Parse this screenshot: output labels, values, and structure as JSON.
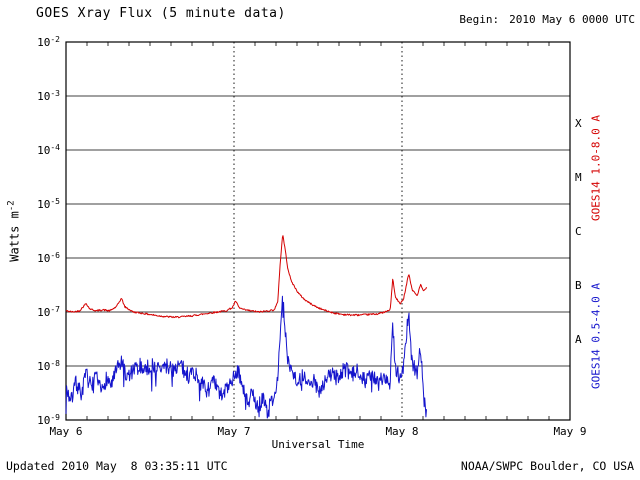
{
  "header": {
    "title": "GOES Xray Flux (5 minute data)",
    "begin_label": "Begin:",
    "begin_value": "2010 May 6 0000 UTC"
  },
  "footer": {
    "updated": "Updated 2010 May  8 03:35:11 UTC",
    "source": "NOAA/SWPC Boulder, CO USA"
  },
  "axes": {
    "xlabel": "Universal Time",
    "ylabel_base": "Watts m",
    "ylabel_exp": "-2"
  },
  "chart_data": {
    "type": "line",
    "title": "GOES Xray Flux (5 minute data)",
    "xlabel": "Universal Time",
    "ylabel": "Watts m^-2",
    "x_unit": "days since 2010 May 6 0000 UTC",
    "xlim_days": [
      0,
      3
    ],
    "ylim": [
      1e-09,
      0.01
    ],
    "y_scale": "log",
    "x_ticks": [
      {
        "label": "May 6",
        "t": 0
      },
      {
        "label": "May 7",
        "t": 1
      },
      {
        "label": "May 8",
        "t": 2
      },
      {
        "label": "May 9",
        "t": 3
      }
    ],
    "y_tick_base": "10",
    "y_tick_exponents": [
      -2,
      -3,
      -4,
      -5,
      -6,
      -7,
      -8,
      -9
    ],
    "y_gridline_exponents": [
      -3,
      -4,
      -5,
      -6,
      -7,
      -8
    ],
    "x_gridline_days": [
      1,
      2
    ],
    "grid": "horizontal solid lines at each decade; vertical dotted lines at day boundaries",
    "legend_position": "right-rotated",
    "flare_classes": [
      {
        "label": "X",
        "center_exponent": -3.5
      },
      {
        "label": "M",
        "center_exponent": -4.5
      },
      {
        "label": "C",
        "center_exponent": -5.5
      },
      {
        "label": "B",
        "center_exponent": -6.5
      },
      {
        "label": "A",
        "center_exponent": -7.5
      }
    ],
    "series": [
      {
        "name": "GOES14 1.0-8.0 A",
        "color": "#d40000",
        "noise_dex": 0.015,
        "points": [
          [
            0.0,
            1.05e-07
          ],
          [
            0.04,
            1e-07
          ],
          [
            0.08,
            1.05e-07
          ],
          [
            0.12,
            1.45e-07
          ],
          [
            0.14,
            1.15e-07
          ],
          [
            0.18,
            1.05e-07
          ],
          [
            0.22,
            1.1e-07
          ],
          [
            0.26,
            1.05e-07
          ],
          [
            0.3,
            1.25e-07
          ],
          [
            0.33,
            1.8e-07
          ],
          [
            0.35,
            1.25e-07
          ],
          [
            0.4,
            1e-07
          ],
          [
            0.45,
            9.5e-08
          ],
          [
            0.5,
            9e-08
          ],
          [
            0.55,
            8.5e-08
          ],
          [
            0.6,
            8.2e-08
          ],
          [
            0.65,
            8e-08
          ],
          [
            0.7,
            8.2e-08
          ],
          [
            0.75,
            8.5e-08
          ],
          [
            0.8,
            9e-08
          ],
          [
            0.85,
            9.5e-08
          ],
          [
            0.9,
            1e-07
          ],
          [
            0.95,
            1.05e-07
          ],
          [
            0.99,
            1.2e-07
          ],
          [
            1.01,
            1.6e-07
          ],
          [
            1.03,
            1.2e-07
          ],
          [
            1.06,
            1.1e-07
          ],
          [
            1.1,
            1.05e-07
          ],
          [
            1.15,
            1e-07
          ],
          [
            1.2,
            1.05e-07
          ],
          [
            1.24,
            1.1e-07
          ],
          [
            1.26,
            1.5e-07
          ],
          [
            1.275,
            8e-07
          ],
          [
            1.29,
            2.8e-06
          ],
          [
            1.305,
            1.4e-06
          ],
          [
            1.32,
            6.5e-07
          ],
          [
            1.34,
            3.8e-07
          ],
          [
            1.37,
            2.6e-07
          ],
          [
            1.385,
            2.2e-07
          ],
          [
            1.42,
            1.7e-07
          ],
          [
            1.46,
            1.4e-07
          ],
          [
            1.5,
            1.2e-07
          ],
          [
            1.55,
            1.05e-07
          ],
          [
            1.6,
            9.5e-08
          ],
          [
            1.65,
            9e-08
          ],
          [
            1.7,
            8.8e-08
          ],
          [
            1.75,
            8.8e-08
          ],
          [
            1.8,
            9e-08
          ],
          [
            1.85,
            9.2e-08
          ],
          [
            1.9,
            1e-07
          ],
          [
            1.93,
            1.1e-07
          ],
          [
            1.945,
            4.2e-07
          ],
          [
            1.96,
            1.9e-07
          ],
          [
            1.99,
            1.4e-07
          ],
          [
            2.01,
            1.8e-07
          ],
          [
            2.04,
            5.2e-07
          ],
          [
            2.06,
            2.6e-07
          ],
          [
            2.09,
            2e-07
          ],
          [
            2.11,
            3.2e-07
          ],
          [
            2.13,
            2.4e-07
          ],
          [
            2.149,
            2.9e-07
          ]
        ]
      },
      {
        "name": "GOES14 0.5-4.0 A",
        "color": "#1414cc",
        "noise_dex": 0.15,
        "points": [
          [
            0.0,
            4e-09
          ],
          [
            0.03,
            2.2e-09
          ],
          [
            0.06,
            5e-09
          ],
          [
            0.09,
            3e-09
          ],
          [
            0.12,
            7e-09
          ],
          [
            0.15,
            4e-09
          ],
          [
            0.18,
            6e-09
          ],
          [
            0.21,
            3.2e-09
          ],
          [
            0.24,
            6e-09
          ],
          [
            0.27,
            4.5e-09
          ],
          [
            0.3,
            8e-09
          ],
          [
            0.33,
            1.2e-08
          ],
          [
            0.36,
            6e-09
          ],
          [
            0.4,
            8e-09
          ],
          [
            0.44,
            1e-08
          ],
          [
            0.48,
            9e-09
          ],
          [
            0.52,
            1.05e-08
          ],
          [
            0.56,
            8.5e-09
          ],
          [
            0.6,
            1e-08
          ],
          [
            0.64,
            9e-09
          ],
          [
            0.68,
            1.05e-08
          ],
          [
            0.72,
            7e-09
          ],
          [
            0.76,
            8e-09
          ],
          [
            0.8,
            5e-09
          ],
          [
            0.84,
            3.5e-09
          ],
          [
            0.88,
            5e-09
          ],
          [
            0.92,
            2.8e-09
          ],
          [
            0.96,
            4e-09
          ],
          [
            1.0,
            6e-09
          ],
          [
            1.02,
            9e-09
          ],
          [
            1.05,
            4e-09
          ],
          [
            1.08,
            2e-09
          ],
          [
            1.11,
            3e-09
          ],
          [
            1.14,
            1.6e-09
          ],
          [
            1.17,
            2.6e-09
          ],
          [
            1.2,
            1.4e-09
          ],
          [
            1.23,
            2.5e-09
          ],
          [
            1.26,
            6e-09
          ],
          [
            1.275,
            3e-08
          ],
          [
            1.29,
            2e-07
          ],
          [
            1.305,
            4e-08
          ],
          [
            1.32,
            1.4e-08
          ],
          [
            1.35,
            8e-09
          ],
          [
            1.38,
            5e-09
          ],
          [
            1.41,
            6.5e-09
          ],
          [
            1.44,
            4e-09
          ],
          [
            1.47,
            5.5e-09
          ],
          [
            1.5,
            3.5e-09
          ],
          [
            1.54,
            5e-09
          ],
          [
            1.58,
            7.5e-09
          ],
          [
            1.62,
            6e-09
          ],
          [
            1.66,
            9e-09
          ],
          [
            1.7,
            6.5e-09
          ],
          [
            1.74,
            8.5e-09
          ],
          [
            1.78,
            5.5e-09
          ],
          [
            1.82,
            7e-09
          ],
          [
            1.86,
            4.5e-09
          ],
          [
            1.9,
            7e-09
          ],
          [
            1.93,
            5e-09
          ],
          [
            1.945,
            8.5e-08
          ],
          [
            1.96,
            9e-09
          ],
          [
            1.99,
            6e-09
          ],
          [
            2.01,
            1.1e-08
          ],
          [
            2.04,
            1.05e-07
          ],
          [
            2.06,
            1.1e-08
          ],
          [
            2.09,
            8e-09
          ],
          [
            2.11,
            2.2e-08
          ],
          [
            2.13,
            2.5e-09
          ],
          [
            2.149,
            1.1e-09
          ]
        ]
      }
    ]
  }
}
